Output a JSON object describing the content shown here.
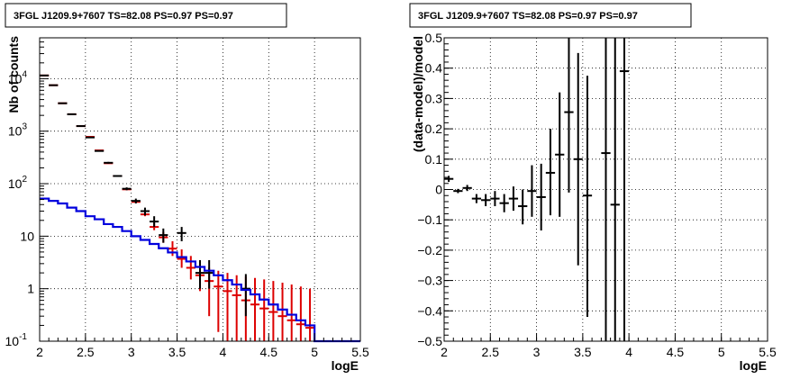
{
  "chart_data": [
    {
      "type": "line",
      "title": "3FGL J1209.9+7607 TS=82.08 PS=0.97 PS=0.97",
      "xlabel": "logE",
      "ylabel": "Nb of counts",
      "xlim": [
        2,
        5.5
      ],
      "ylim": [
        0.1,
        60000
      ],
      "yscale": "log",
      "grid": true,
      "x_ticks": [
        "2",
        "2.5",
        "3",
        "3.5",
        "4",
        "4.5",
        "5",
        "5.5"
      ],
      "y_ticks": [
        {
          "value": 0.1,
          "label": "10",
          "exp": "-1"
        },
        {
          "value": 1,
          "label": "1",
          "exp": ""
        },
        {
          "value": 10,
          "label": "10",
          "exp": ""
        },
        {
          "value": 100,
          "label": "10",
          "exp": "2"
        },
        {
          "value": 1000,
          "label": "10",
          "exp": "3"
        },
        {
          "value": 10000,
          "label": "10",
          "exp": "4"
        }
      ],
      "series": [
        {
          "color": "#dd0000",
          "kind": "errorbar",
          "xerr": 0.05,
          "points": [
            {
              "x": 2.05,
              "y": 11500,
              "lo": 11500,
              "hi": 11500
            },
            {
              "x": 2.15,
              "y": 7500,
              "lo": 7500,
              "hi": 7500
            },
            {
              "x": 2.25,
              "y": 3400,
              "lo": 3400,
              "hi": 3400
            },
            {
              "x": 2.35,
              "y": 2100,
              "lo": 2100,
              "hi": 2100
            },
            {
              "x": 2.45,
              "y": 1250,
              "lo": 1250,
              "hi": 1250
            },
            {
              "x": 2.55,
              "y": 780,
              "lo": 780,
              "hi": 780
            },
            {
              "x": 2.65,
              "y": 430,
              "lo": 430,
              "hi": 430
            },
            {
              "x": 2.75,
              "y": 245,
              "lo": 245,
              "hi": 245
            },
            {
              "x": 2.85,
              "y": 140,
              "lo": 140,
              "hi": 140
            },
            {
              "x": 2.95,
              "y": 78,
              "lo": 78,
              "hi": 78
            },
            {
              "x": 3.05,
              "y": 45,
              "lo": 45,
              "hi": 45
            },
            {
              "x": 3.15,
              "y": 26,
              "lo": 24,
              "hi": 28
            },
            {
              "x": 3.25,
              "y": 15,
              "lo": 13,
              "hi": 18
            },
            {
              "x": 3.35,
              "y": 9.5,
              "lo": 7.5,
              "hi": 12
            },
            {
              "x": 3.45,
              "y": 5.8,
              "lo": 4.2,
              "hi": 8
            },
            {
              "x": 3.55,
              "y": 3.7,
              "lo": 2.5,
              "hi": 5.6
            },
            {
              "x": 3.65,
              "y": 2.5,
              "lo": 1.5,
              "hi": 4.2
            },
            {
              "x": 3.75,
              "y": 1.8,
              "lo": 0.9,
              "hi": 3.2
            },
            {
              "x": 3.85,
              "y": 1.4,
              "lo": 0.3,
              "hi": 2.5
            },
            {
              "x": 3.95,
              "y": 1.1,
              "lo": 0.15,
              "hi": 2.2
            },
            {
              "x": 4.05,
              "y": 0.9,
              "lo": 0.1,
              "hi": 2.0
            },
            {
              "x": 4.15,
              "y": 0.75,
              "lo": 0.1,
              "hi": 1.8
            },
            {
              "x": 4.25,
              "y": 0.6,
              "lo": 0.1,
              "hi": 1.7
            },
            {
              "x": 4.35,
              "y": 0.5,
              "lo": 0.1,
              "hi": 1.6
            },
            {
              "x": 4.45,
              "y": 0.42,
              "lo": 0.1,
              "hi": 1.5
            },
            {
              "x": 4.55,
              "y": 0.36,
              "lo": 0.1,
              "hi": 1.4
            },
            {
              "x": 4.65,
              "y": 0.3,
              "lo": 0.1,
              "hi": 1.3
            },
            {
              "x": 4.75,
              "y": 0.25,
              "lo": 0.1,
              "hi": 1.2
            },
            {
              "x": 4.85,
              "y": 0.21,
              "lo": 0.1,
              "hi": 1.1
            },
            {
              "x": 4.95,
              "y": 0.18,
              "lo": 0.1,
              "hi": 1.0
            }
          ]
        },
        {
          "color": "#000000",
          "kind": "errorbar",
          "xerr": 0.05,
          "points": [
            {
              "x": 2.05,
              "y": 11500,
              "lo": 11500,
              "hi": 11500
            },
            {
              "x": 2.15,
              "y": 7500,
              "lo": 7500,
              "hi": 7500
            },
            {
              "x": 2.25,
              "y": 3400,
              "lo": 3400,
              "hi": 3400
            },
            {
              "x": 2.35,
              "y": 2100,
              "lo": 2100,
              "hi": 2100
            },
            {
              "x": 2.45,
              "y": 1250,
              "lo": 1250,
              "hi": 1250
            },
            {
              "x": 2.55,
              "y": 760,
              "lo": 760,
              "hi": 760
            },
            {
              "x": 2.65,
              "y": 420,
              "lo": 420,
              "hi": 420
            },
            {
              "x": 2.75,
              "y": 250,
              "lo": 240,
              "hi": 260
            },
            {
              "x": 2.85,
              "y": 140,
              "lo": 135,
              "hi": 145
            },
            {
              "x": 2.95,
              "y": 80,
              "lo": 75,
              "hi": 85
            },
            {
              "x": 3.05,
              "y": 47,
              "lo": 42,
              "hi": 52
            },
            {
              "x": 3.15,
              "y": 30,
              "lo": 25,
              "hi": 35
            },
            {
              "x": 3.25,
              "y": 19,
              "lo": 15,
              "hi": 24
            },
            {
              "x": 3.35,
              "y": 10.5,
              "lo": 7.5,
              "hi": 14
            },
            {
              "x": 3.55,
              "y": 11.5,
              "lo": 8,
              "hi": 15
            },
            {
              "x": 3.75,
              "y": 2.0,
              "lo": 1.0,
              "hi": 3.5
            },
            {
              "x": 3.85,
              "y": 2.0,
              "lo": 1.0,
              "hi": 3.5
            },
            {
              "x": 4.25,
              "y": 1.0,
              "lo": 0.3,
              "hi": 1.9
            }
          ]
        },
        {
          "color": "#0000dd",
          "kind": "step",
          "x_edges": [
            2.0,
            2.1,
            2.2,
            2.3,
            2.4,
            2.5,
            2.6,
            2.7,
            2.8,
            2.9,
            3.0,
            3.1,
            3.2,
            3.3,
            3.4,
            3.5,
            3.6,
            3.7,
            3.8,
            3.9,
            4.0,
            4.1,
            4.2,
            4.3,
            4.4,
            4.5,
            4.6,
            4.7,
            4.8,
            4.9,
            5.0,
            5.1,
            5.2,
            5.3,
            5.4,
            5.5
          ],
          "values": [
            52,
            47,
            42,
            35,
            30,
            24,
            21,
            17,
            15,
            12.5,
            10,
            8.5,
            7.1,
            5.9,
            4.9,
            4.0,
            3.3,
            2.6,
            2.2,
            1.8,
            1.45,
            1.2,
            0.95,
            0.78,
            0.62,
            0.5,
            0.4,
            0.32,
            0.25,
            0.2,
            0.1,
            0.1,
            0.1,
            0.1,
            0.1
          ]
        }
      ]
    },
    {
      "type": "scatter",
      "title": "3FGL J1209.9+7607 TS=82.08 PS=0.97 PS=0.97",
      "xlabel": "logE",
      "ylabel": "(data-model)/model",
      "xlim": [
        2,
        5.5
      ],
      "ylim": [
        -0.5,
        0.5
      ],
      "grid": true,
      "x_ticks": [
        "2",
        "2.5",
        "3",
        "3.5",
        "4",
        "4.5",
        "5",
        "5.5"
      ],
      "y_ticks": [
        "−0.5",
        "−0.4",
        "−0.3",
        "−0.2",
        "−0.1",
        "0",
        "0.1",
        "0.2",
        "0.3",
        "0.4",
        "0.5"
      ],
      "series": [
        {
          "color": "#000000",
          "kind": "errorbar",
          "xerr": 0.05,
          "points": [
            {
              "x": 2.05,
              "y": 0.035,
              "lo": 0.025,
              "hi": 0.045
            },
            {
              "x": 2.15,
              "y": -0.005,
              "lo": -0.012,
              "hi": 0.002
            },
            {
              "x": 2.25,
              "y": 0.005,
              "lo": -0.005,
              "hi": 0.015
            },
            {
              "x": 2.35,
              "y": -0.03,
              "lo": -0.045,
              "hi": -0.015
            },
            {
              "x": 2.45,
              "y": -0.035,
              "lo": -0.055,
              "hi": -0.015
            },
            {
              "x": 2.55,
              "y": -0.03,
              "lo": -0.055,
              "hi": -0.005
            },
            {
              "x": 2.65,
              "y": -0.045,
              "lo": -0.075,
              "hi": -0.015
            },
            {
              "x": 2.75,
              "y": -0.03,
              "lo": -0.07,
              "hi": 0.01
            },
            {
              "x": 2.85,
              "y": -0.055,
              "lo": -0.115,
              "hi": -0.0
            },
            {
              "x": 2.95,
              "y": -0.005,
              "lo": -0.09,
              "hi": 0.08
            },
            {
              "x": 3.05,
              "y": -0.025,
              "lo": -0.135,
              "hi": 0.085
            },
            {
              "x": 3.15,
              "y": 0.055,
              "lo": -0.085,
              "hi": 0.2
            },
            {
              "x": 3.25,
              "y": 0.115,
              "lo": -0.09,
              "hi": 0.32
            },
            {
              "x": 3.35,
              "y": 0.255,
              "lo": -0.01,
              "hi": 0.5
            },
            {
              "x": 3.45,
              "y": 0.1,
              "lo": -0.25,
              "hi": 0.45
            },
            {
              "x": 3.55,
              "y": -0.02,
              "lo": -0.42,
              "hi": 0.375
            },
            {
              "x": 3.75,
              "y": 0.12,
              "lo": -0.5,
              "hi": 0.5
            },
            {
              "x": 3.85,
              "y": -0.05,
              "lo": -0.5,
              "hi": 0.5
            },
            {
              "x": 3.95,
              "y": 0.39,
              "lo": -0.5,
              "hi": 0.5
            }
          ]
        }
      ]
    }
  ]
}
